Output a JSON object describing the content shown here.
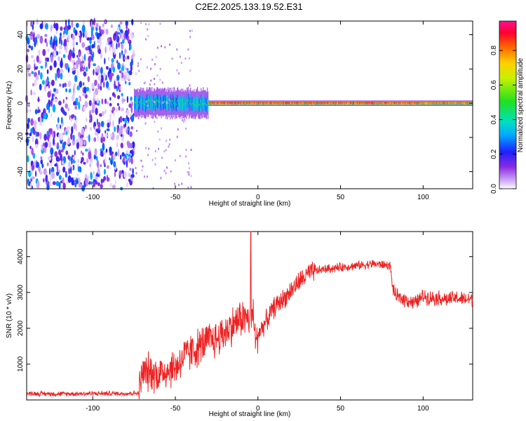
{
  "title": "C2E2.2025.133.19.52.E31",
  "colorbar": {
    "label": "Normalized spectral amplitude",
    "ticks": [
      "0.0",
      "0.2",
      "0.4",
      "0.6",
      "0.8"
    ],
    "range": [
      0,
      0.97
    ]
  },
  "chart_data": [
    {
      "type": "heatmap",
      "xlabel": "Height of straight line (km)",
      "ylabel": "Frequency (Hz)",
      "xlim": [
        -140,
        130
      ],
      "ylim": [
        -50,
        48
      ],
      "xticks": [
        -100,
        -50,
        0,
        50,
        100
      ],
      "xtick_labels": [
        "-100",
        "-50",
        "0",
        "50",
        "100"
      ],
      "yticks": [
        -40,
        -20,
        0,
        20,
        40
      ],
      "ytick_labels": [
        "-40",
        "-20",
        "0",
        "20",
        "40"
      ],
      "regions": [
        {
          "x": [
            -140,
            -75
          ],
          "pattern": "broadband noise",
          "amplitude": 0.2
        },
        {
          "x": [
            -75,
            -30
          ],
          "pattern": "band near 0 Hz",
          "half_width_hz": 5,
          "amplitude": 0.5
        },
        {
          "x": [
            -30,
            98
          ],
          "pattern": "narrow line at 0 Hz",
          "half_width_hz": 1,
          "amplitude": 0.95
        },
        {
          "x": [
            98,
            130
          ],
          "pattern": "narrow line at 0 Hz",
          "half_width_hz": 1,
          "amplitude": 0.9
        }
      ]
    },
    {
      "type": "line",
      "xlabel": "Height of straight line (km)",
      "ylabel": "SNR (10 * v/v)",
      "xlim": [
        -140,
        130
      ],
      "ylim": [
        0,
        4700
      ],
      "xticks": [
        -100,
        -50,
        0,
        50,
        100
      ],
      "xtick_labels": [
        "-100",
        "-50",
        "0",
        "50",
        "100"
      ],
      "yticks": [
        1000,
        2000,
        3000,
        4000
      ],
      "ytick_labels": [
        "1000",
        "2000",
        "3000",
        "4000"
      ],
      "color": "#ee2222",
      "series": [
        {
          "x": [
            -140,
            -120,
            -100,
            -80,
            -72,
            -70,
            -65,
            -60,
            -55,
            -50,
            -45,
            -40,
            -35,
            -30,
            -25,
            -20,
            -15,
            -10,
            -5,
            -3,
            -1,
            0,
            5,
            10,
            15,
            20,
            25,
            30,
            35,
            40,
            50,
            60,
            70,
            80,
            82,
            85,
            90,
            95,
            100,
            105,
            110,
            115,
            120,
            125,
            130
          ],
          "y": [
            180,
            170,
            180,
            180,
            190,
            750,
            780,
            720,
            850,
            900,
            1200,
            1350,
            1500,
            1650,
            1700,
            1900,
            2100,
            2300,
            2250,
            2400,
            1500,
            1850,
            2200,
            2600,
            2800,
            3050,
            3300,
            3500,
            3600,
            3650,
            3700,
            3750,
            3800,
            3750,
            3000,
            2850,
            2800,
            2700,
            2900,
            2850,
            2850,
            2800,
            2850,
            2800,
            2820
          ]
        }
      ]
    }
  ]
}
